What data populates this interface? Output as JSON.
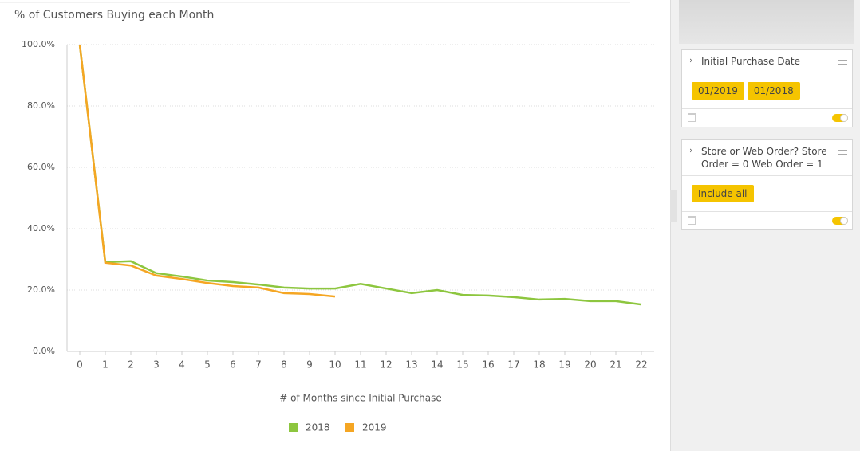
{
  "chart_data": {
    "type": "line",
    "title": "% of Customers Buying each Month",
    "x_label": "# of Months since Initial Purchase",
    "x": [
      0,
      1,
      2,
      3,
      4,
      5,
      6,
      7,
      8,
      9,
      10,
      11,
      12,
      13,
      14,
      15,
      16,
      17,
      18,
      19,
      20,
      21,
      22
    ],
    "xlim": [
      -0.5,
      22.5
    ],
    "xticks": [
      0,
      1,
      2,
      3,
      4,
      5,
      6,
      7,
      8,
      9,
      10,
      11,
      12,
      13,
      14,
      15,
      16,
      17,
      18,
      19,
      20,
      21,
      22
    ],
    "ylim": [
      0,
      100
    ],
    "yticks": [
      {
        "value": 0,
        "label": "0.0%"
      },
      {
        "value": 20,
        "label": "20.0%"
      },
      {
        "value": 40,
        "label": "40.0%"
      },
      {
        "value": 60,
        "label": "60.0%"
      },
      {
        "value": 80,
        "label": "80.0%"
      },
      {
        "value": 100,
        "label": "100.0%"
      }
    ],
    "grid": true,
    "legend": "bottom",
    "series": [
      {
        "name": "2018",
        "color": "#8dc63f",
        "values": [
          100,
          29.1,
          29.4,
          25.5,
          24.4,
          23.1,
          22.6,
          21.8,
          20.8,
          20.5,
          20.5,
          22,
          20.5,
          19,
          20,
          18.4,
          18.2,
          17.7,
          16.9,
          17.1,
          16.4,
          16.4,
          15.3
        ]
      },
      {
        "name": "2019",
        "color": "#f5a623",
        "values": [
          100,
          28.9,
          28,
          24.7,
          23.6,
          22.3,
          21.3,
          20.8,
          19,
          18.7,
          17.9,
          null,
          null,
          null,
          null,
          null,
          null,
          null,
          null,
          null,
          null,
          null,
          null
        ]
      }
    ]
  },
  "panel": {
    "filters": [
      {
        "title": "Initial Purchase Date",
        "values": [
          "01/2019",
          "01/2018"
        ]
      },
      {
        "title": "Store or Web Order? Store Order = 0 Web Order = 1",
        "values": [
          "Include all"
        ]
      }
    ]
  }
}
